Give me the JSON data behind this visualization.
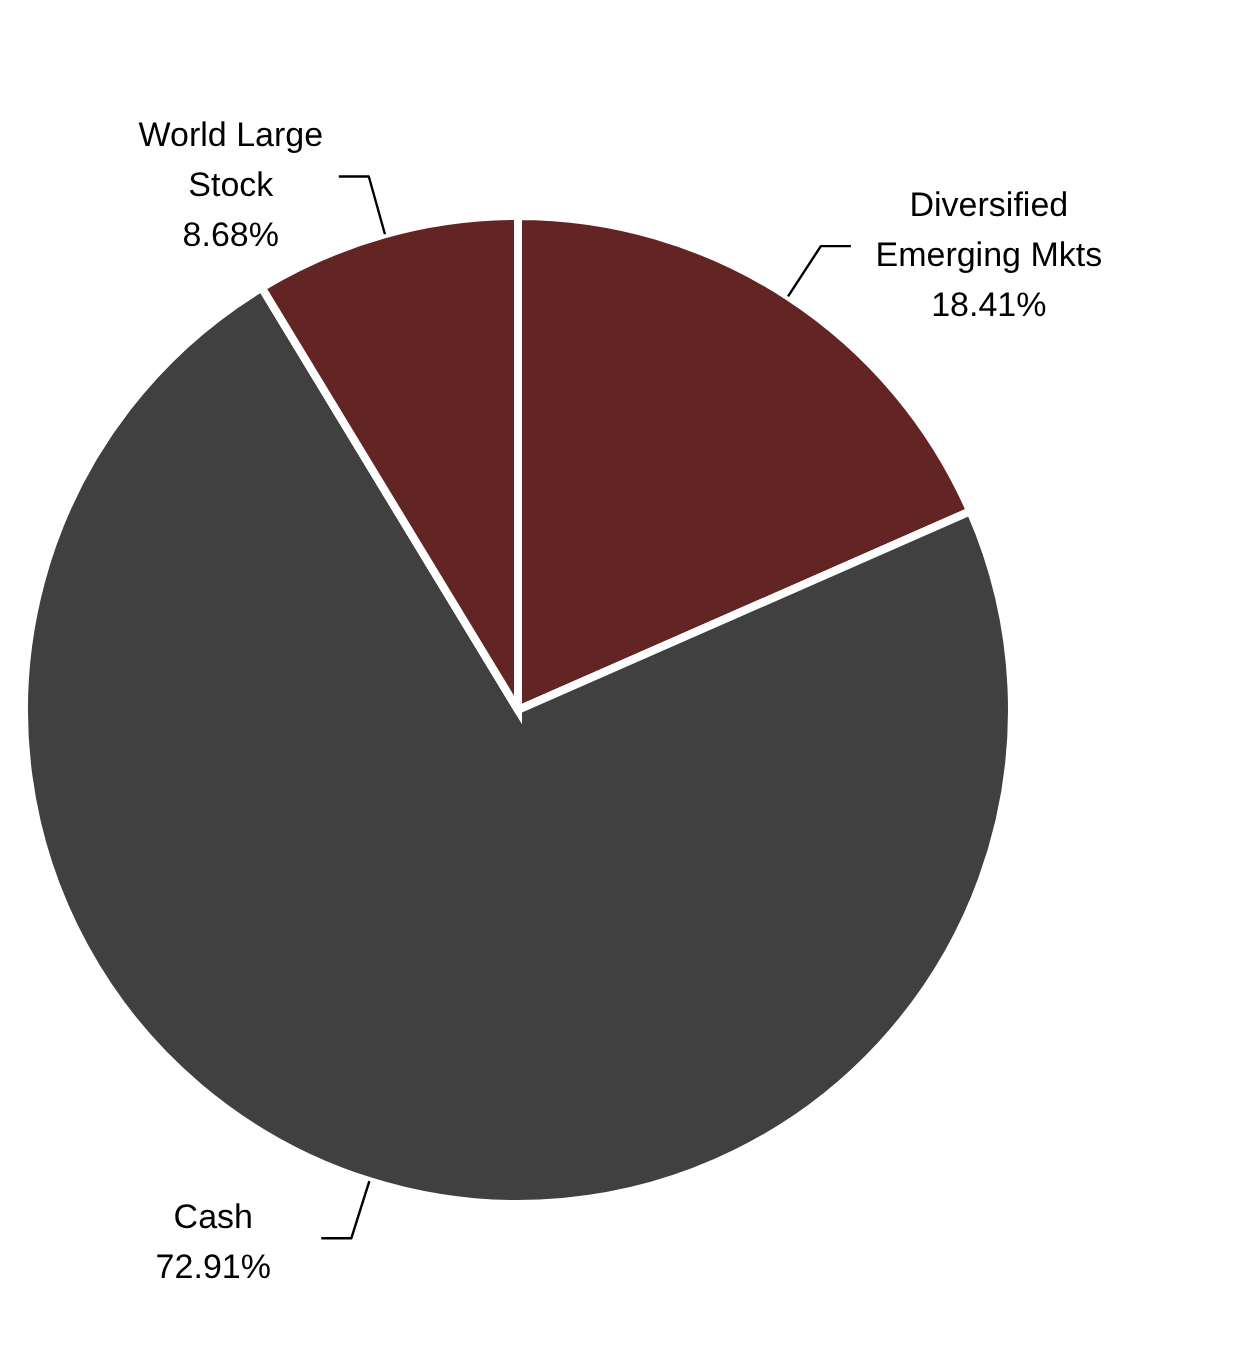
{
  "chart_data": {
    "type": "pie",
    "categories": [
      "Diversified Emerging Mkts",
      "Cash",
      "World Large Stock"
    ],
    "values": [
      18.41,
      72.91,
      8.68
    ],
    "colors": [
      "#632523",
      "#404040",
      "#632523"
    ],
    "value_labels": [
      "18.41%",
      "72.91%",
      "8.68%"
    ]
  }
}
